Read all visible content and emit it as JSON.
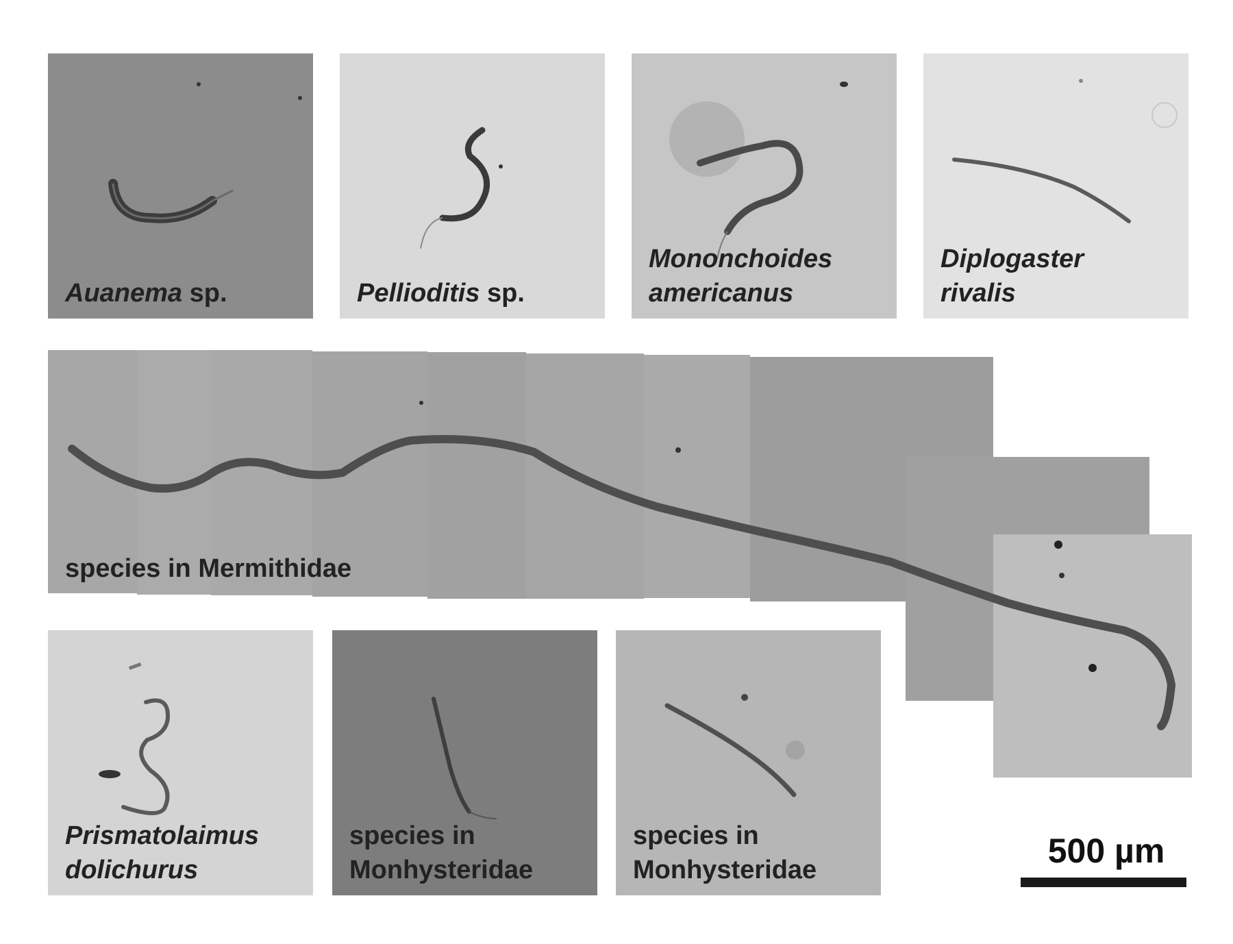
{
  "panels": [
    {
      "italic": "Auanema",
      "rest": " sp."
    },
    {
      "italic": "Pellioditis",
      "rest": " sp."
    },
    {
      "line1": "Mononchoides",
      "line2": "americanus"
    },
    {
      "line1": "Diplogaster",
      "line2": "rivalis"
    },
    {
      "line1": "Prismatolaimus",
      "line2": "dolichurus"
    },
    {
      "line1": "species in",
      "line2": "Monhysteridae"
    },
    {
      "line1": "species in",
      "line2": "Monhysteridae"
    }
  ],
  "mermithidae": {
    "label": "species in Mermithidae"
  },
  "scale": {
    "label": "500 µm"
  },
  "colors": {
    "panel_dark": "#8a8a8a",
    "panel_light": "#d8d8d8",
    "worm": "#5a5a5a",
    "text": "#222222"
  }
}
